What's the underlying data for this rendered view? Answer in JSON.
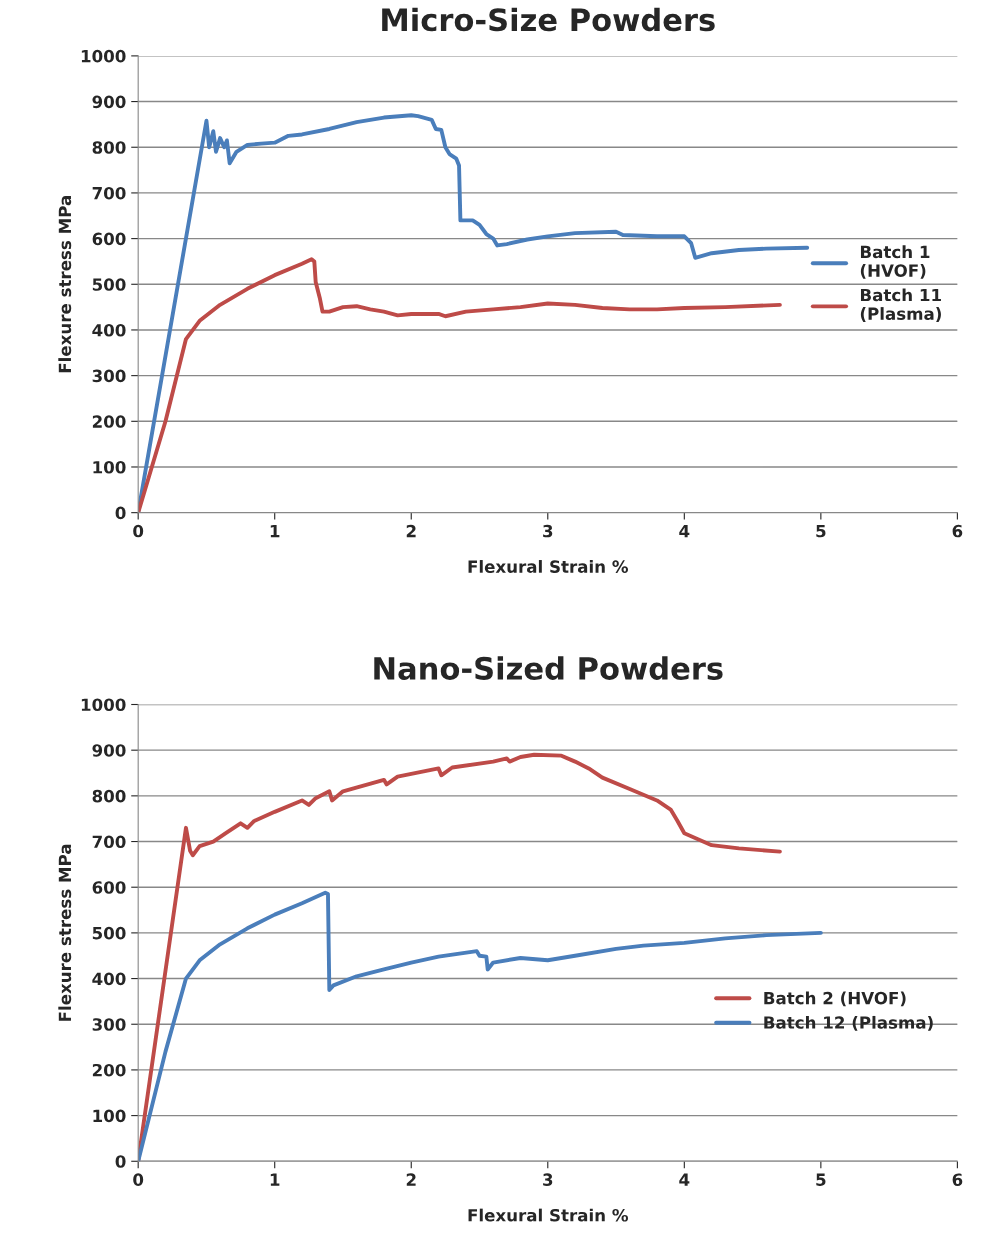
{
  "chart_data": [
    {
      "type": "line",
      "title": "Micro-Size Powders",
      "xlabel": "Flexural Strain %",
      "ylabel": "Flexure stress MPa",
      "xlim": [
        0,
        6
      ],
      "xticks": [
        0,
        1,
        2,
        3,
        4,
        5,
        6
      ],
      "ylim": [
        0,
        1000
      ],
      "yticks": [
        0,
        100,
        200,
        300,
        400,
        500,
        600,
        700,
        800,
        900,
        1000
      ],
      "grid": "y",
      "legend": "right",
      "marker": "none",
      "line_style": "solid",
      "series": [
        {
          "name": "Batch 1\n(HVOF)",
          "color": "#4a7ebb",
          "x": [
            0,
            0.5,
            0.52,
            0.55,
            0.57,
            0.6,
            0.63,
            0.65,
            0.67,
            0.72,
            0.8,
            0.9,
            1.0,
            1.1,
            1.2,
            1.4,
            1.6,
            1.8,
            2.0,
            2.05,
            2.15,
            2.18,
            2.22,
            2.25,
            2.28,
            2.33,
            2.35,
            2.36,
            2.45,
            2.5,
            2.55,
            2.6,
            2.63,
            2.7,
            2.85,
            3.0,
            3.2,
            3.5,
            3.55,
            3.8,
            4.0,
            4.05,
            4.08,
            4.2,
            4.4,
            4.6,
            4.9
          ],
          "values": [
            0,
            858,
            800,
            835,
            790,
            820,
            800,
            815,
            765,
            790,
            805,
            808,
            810,
            825,
            828,
            840,
            855,
            865,
            870,
            868,
            860,
            840,
            838,
            800,
            785,
            775,
            760,
            640,
            640,
            630,
            610,
            600,
            585,
            588,
            598,
            605,
            612,
            615,
            608,
            605,
            605,
            590,
            558,
            568,
            575,
            578,
            580
          ]
        },
        {
          "name": "Batch 11\n(Plasma)",
          "color": "#be4b48",
          "x": [
            0,
            0.2,
            0.35,
            0.45,
            0.6,
            0.8,
            1.0,
            1.2,
            1.27,
            1.29,
            1.3,
            1.33,
            1.35,
            1.4,
            1.5,
            1.6,
            1.7,
            1.8,
            1.9,
            2.0,
            2.2,
            2.25,
            2.4,
            2.6,
            2.8,
            3.0,
            3.2,
            3.4,
            3.6,
            3.8,
            4.0,
            4.3,
            4.7
          ],
          "values": [
            0,
            200,
            380,
            420,
            455,
            490,
            520,
            545,
            555,
            550,
            505,
            470,
            440,
            440,
            450,
            452,
            445,
            440,
            432,
            435,
            435,
            430,
            440,
            445,
            450,
            458,
            455,
            448,
            445,
            445,
            448,
            450,
            455
          ]
        }
      ]
    },
    {
      "type": "line",
      "title": "Nano-Sized Powders",
      "xlabel": "Flexural Strain %",
      "ylabel": "Flexure stress MPa",
      "xlim": [
        0,
        6
      ],
      "xticks": [
        0,
        1,
        2,
        3,
        4,
        5,
        6
      ],
      "ylim": [
        0,
        1000
      ],
      "yticks": [
        0,
        100,
        200,
        300,
        400,
        500,
        600,
        700,
        800,
        900,
        1000
      ],
      "grid": "y",
      "legend": "bottom right",
      "marker": "none",
      "line_style": "solid",
      "series": [
        {
          "name": "Batch 2 (HVOF)",
          "color": "#be4b48",
          "x": [
            0,
            0.35,
            0.38,
            0.4,
            0.45,
            0.55,
            0.65,
            0.75,
            0.8,
            0.85,
            1.0,
            1.2,
            1.25,
            1.3,
            1.4,
            1.42,
            1.5,
            1.8,
            1.82,
            1.9,
            2.2,
            2.22,
            2.3,
            2.6,
            2.7,
            2.72,
            2.8,
            2.9,
            3.1,
            3.2,
            3.3,
            3.4,
            3.6,
            3.8,
            3.9,
            3.95,
            4.0,
            4.1,
            4.2,
            4.4,
            4.7
          ],
          "values": [
            0,
            730,
            680,
            670,
            690,
            700,
            720,
            740,
            730,
            745,
            765,
            790,
            780,
            795,
            810,
            790,
            810,
            835,
            825,
            842,
            860,
            845,
            862,
            875,
            882,
            875,
            885,
            890,
            888,
            875,
            860,
            840,
            815,
            790,
            770,
            745,
            718,
            705,
            692,
            685,
            678
          ]
        },
        {
          "name": "Batch 12 (Plasma)",
          "color": "#4a7ebb",
          "x": [
            0,
            0.2,
            0.35,
            0.45,
            0.6,
            0.8,
            1.0,
            1.2,
            1.37,
            1.39,
            1.4,
            1.43,
            1.6,
            1.8,
            2.0,
            2.2,
            2.48,
            2.5,
            2.55,
            2.56,
            2.6,
            2.8,
            3.0,
            3.2,
            3.5,
            3.7,
            4.0,
            4.3,
            4.6,
            5.0
          ],
          "values": [
            0,
            240,
            400,
            440,
            475,
            510,
            540,
            565,
            588,
            585,
            375,
            385,
            405,
            420,
            435,
            448,
            460,
            450,
            448,
            420,
            435,
            445,
            440,
            450,
            465,
            472,
            478,
            488,
            495,
            500
          ]
        }
      ]
    }
  ]
}
